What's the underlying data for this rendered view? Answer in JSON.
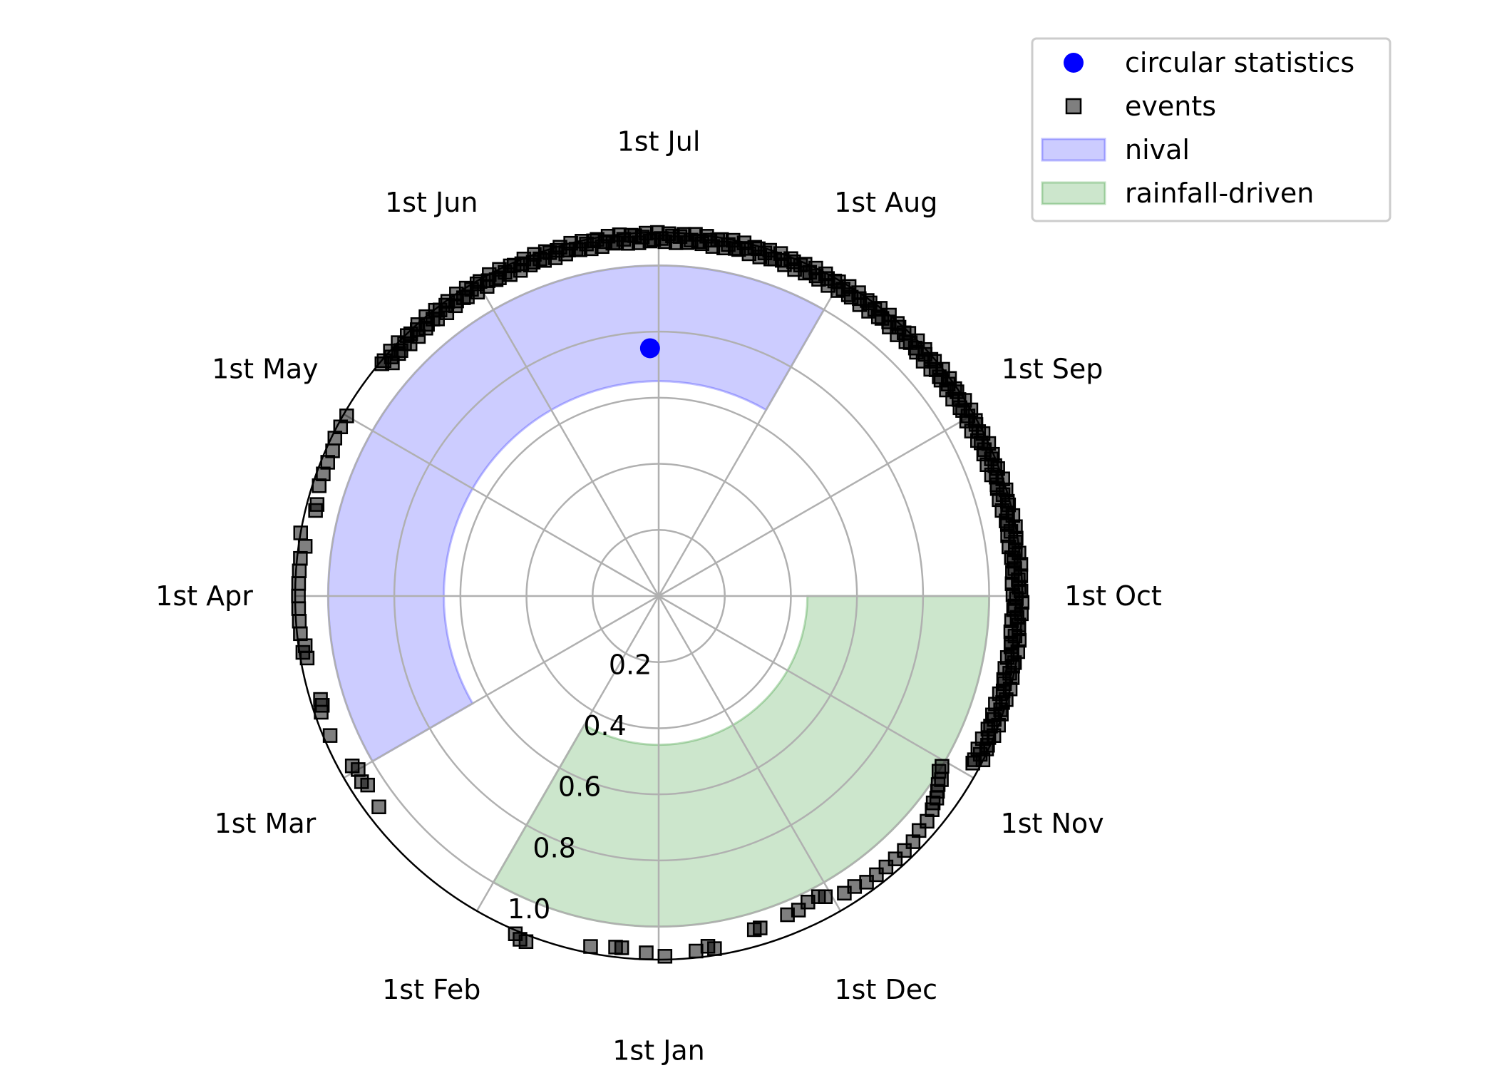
{
  "chart_data": {
    "type": "polar_scatter",
    "title": "",
    "theta_zero": "top",
    "theta_direction": "clockwise",
    "month_labels": [
      "1st Jul",
      "1st Aug",
      "1st Sep",
      "1st Oct",
      "1st Nov",
      "1st Dec",
      "1st Jan",
      "1st Feb",
      "1st Mar",
      "1st Apr",
      "1st May",
      "1st Jun"
    ],
    "month_angles_deg": [
      0,
      30,
      60,
      90,
      120,
      150,
      180,
      210,
      240,
      270,
      300,
      330
    ],
    "r_ticks": [
      0.2,
      0.4,
      0.6,
      0.8,
      1.0
    ],
    "r_tick_labels": [
      "0.2",
      "0.4",
      "0.6",
      "0.8",
      "1.0"
    ],
    "rlim": [
      0,
      1.1
    ],
    "grid": true,
    "legend_position": "top-right",
    "legend": [
      {
        "label": "circular statistics",
        "kind": "marker-circle",
        "color": "#0000ff"
      },
      {
        "label": "events",
        "kind": "marker-square",
        "color": "#555555"
      },
      {
        "label": "nival",
        "kind": "patch",
        "color": "#0000ff"
      },
      {
        "label": "rainfall-driven",
        "kind": "patch",
        "color": "#008000"
      }
    ],
    "regions": [
      {
        "name": "nival",
        "theta_start_deg": 240,
        "theta_end_deg": 390,
        "r_inner": 0.65,
        "r_outer": 1.0,
        "color": "#0000ff"
      },
      {
        "name": "rainfall-driven",
        "theta_start_deg": 90,
        "theta_end_deg": 210,
        "r_inner": 0.45,
        "r_outer": 1.0,
        "color": "#008000"
      }
    ],
    "circular_statistics": {
      "theta_deg": -2,
      "r": 0.75,
      "color": "#0000ff"
    },
    "events": {
      "dense_ring": {
        "theta_start_deg": -50,
        "theta_end_deg": 118,
        "r": 1.1
      },
      "points": [
        {
          "theta_deg": 121,
          "r": 1.0
        },
        {
          "theta_deg": 122,
          "r": 1.0
        },
        {
          "theta_deg": 123,
          "r": 1.02
        },
        {
          "theta_deg": 124,
          "r": 1.02
        },
        {
          "theta_deg": 125,
          "r": 1.03
        },
        {
          "theta_deg": 126,
          "r": 1.04
        },
        {
          "theta_deg": 127,
          "r": 1.04
        },
        {
          "theta_deg": 128,
          "r": 1.05
        },
        {
          "theta_deg": 130,
          "r": 1.06
        },
        {
          "theta_deg": 132,
          "r": 1.06
        },
        {
          "theta_deg": 134,
          "r": 1.07
        },
        {
          "theta_deg": 136,
          "r": 1.07
        },
        {
          "theta_deg": 138,
          "r": 1.07
        },
        {
          "theta_deg": 140,
          "r": 1.07
        },
        {
          "theta_deg": 142,
          "r": 1.07
        },
        {
          "theta_deg": 144,
          "r": 1.07
        },
        {
          "theta_deg": 146,
          "r": 1.06
        },
        {
          "theta_deg": 148,
          "r": 1.06
        },
        {
          "theta_deg": 151,
          "r": 1.04
        },
        {
          "theta_deg": 152,
          "r": 1.03
        },
        {
          "theta_deg": 154,
          "r": 1.03
        },
        {
          "theta_deg": 156,
          "r": 1.04
        },
        {
          "theta_deg": 158,
          "r": 1.04
        },
        {
          "theta_deg": 163,
          "r": 1.05
        },
        {
          "theta_deg": 164,
          "r": 1.05
        },
        {
          "theta_deg": 171,
          "r": 1.08
        },
        {
          "theta_deg": 172,
          "r": 1.07
        },
        {
          "theta_deg": 174,
          "r": 1.08
        },
        {
          "theta_deg": 179,
          "r": 1.09
        },
        {
          "theta_deg": 182,
          "r": 1.08
        },
        {
          "theta_deg": 186,
          "r": 1.07
        },
        {
          "theta_deg": 187,
          "r": 1.07
        },
        {
          "theta_deg": 191,
          "r": 1.08
        },
        {
          "theta_deg": 201,
          "r": 1.12
        },
        {
          "theta_deg": 202,
          "r": 1.12
        },
        {
          "theta_deg": 203,
          "r": 1.11
        },
        {
          "theta_deg": 233,
          "r": 1.06
        },
        {
          "theta_deg": 237,
          "r": 1.05
        },
        {
          "theta_deg": 238,
          "r": 1.06
        },
        {
          "theta_deg": 240,
          "r": 1.05
        },
        {
          "theta_deg": 241,
          "r": 1.06
        },
        {
          "theta_deg": 247,
          "r": 1.08
        },
        {
          "theta_deg": 251,
          "r": 1.08
        },
        {
          "theta_deg": 252,
          "r": 1.07
        },
        {
          "theta_deg": 253,
          "r": 1.07
        },
        {
          "theta_deg": 260,
          "r": 1.08
        },
        {
          "theta_deg": 261,
          "r": 1.09
        },
        {
          "theta_deg": 262,
          "r": 1.08
        },
        {
          "theta_deg": 264,
          "r": 1.09
        },
        {
          "theta_deg": 266,
          "r": 1.09
        },
        {
          "theta_deg": 268,
          "r": 1.09
        },
        {
          "theta_deg": 270,
          "r": 1.09
        },
        {
          "theta_deg": 272,
          "r": 1.09
        },
        {
          "theta_deg": 274,
          "r": 1.09
        },
        {
          "theta_deg": 276,
          "r": 1.09
        },
        {
          "theta_deg": 278,
          "r": 1.08
        },
        {
          "theta_deg": 280,
          "r": 1.1
        },
        {
          "theta_deg": 284,
          "r": 1.07
        },
        {
          "theta_deg": 285,
          "r": 1.07
        },
        {
          "theta_deg": 288,
          "r": 1.08
        },
        {
          "theta_deg": 290,
          "r": 1.08
        },
        {
          "theta_deg": 292,
          "r": 1.08
        },
        {
          "theta_deg": 294,
          "r": 1.08
        },
        {
          "theta_deg": 296,
          "r": 1.09
        },
        {
          "theta_deg": 298,
          "r": 1.09
        },
        {
          "theta_deg": 300,
          "r": 1.09
        }
      ]
    }
  }
}
